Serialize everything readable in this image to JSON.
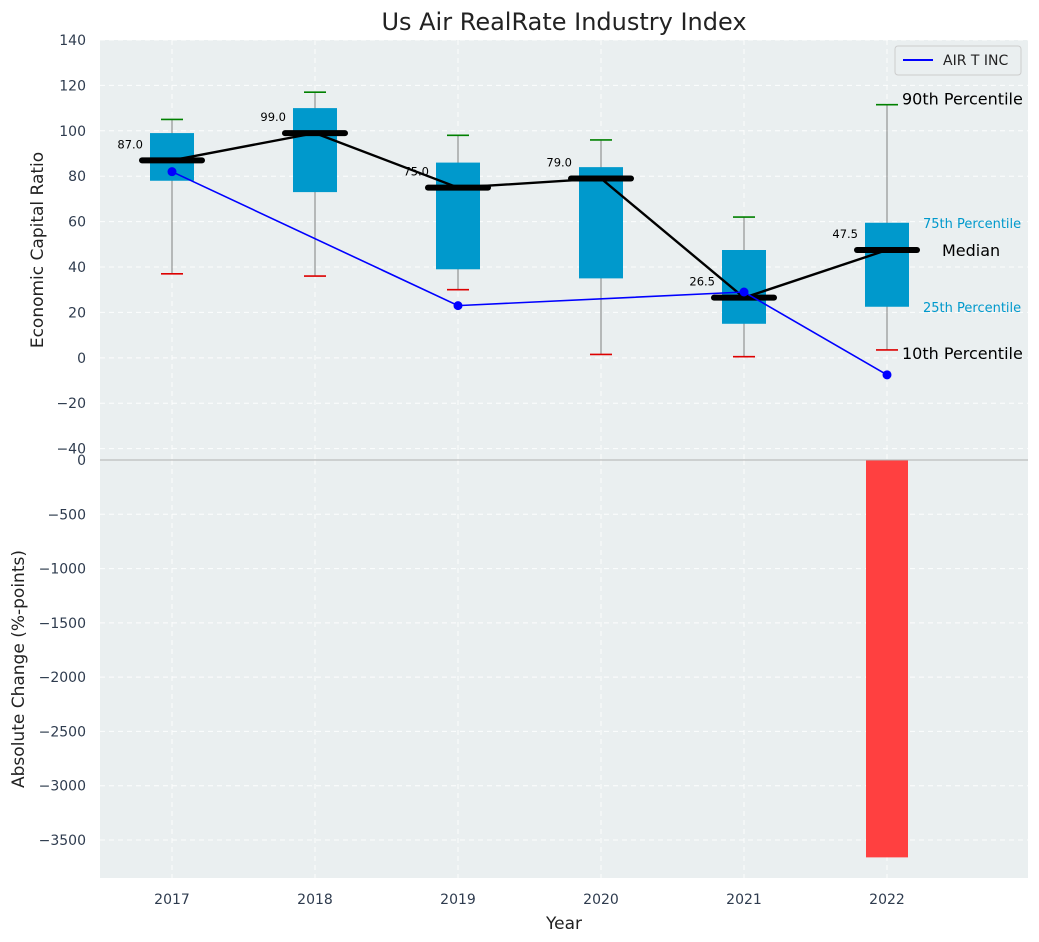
{
  "chart_data": [
    {
      "type": "box",
      "title": "Us Air RealRate Industry Index",
      "ylabel": "Economic Capital Ratio",
      "ylim": [
        -45,
        140
      ],
      "yticks": [
        -40,
        -20,
        0,
        20,
        40,
        60,
        80,
        100,
        120,
        140
      ],
      "categories": [
        "2017",
        "2018",
        "2019",
        "2020",
        "2021",
        "2022"
      ],
      "percentile_10": [
        37,
        36,
        30,
        1.5,
        0.5,
        3.5
      ],
      "percentile_25": [
        78,
        73,
        39,
        35,
        15,
        22.5
      ],
      "median": [
        87.0,
        99.0,
        75.0,
        79.0,
        26.5,
        47.5
      ],
      "median_labels": [
        "87.0",
        "99.0",
        "75.0",
        "79.0",
        "26.5",
        "47.5"
      ],
      "percentile_75": [
        99,
        110,
        86,
        84,
        47.5,
        59.5
      ],
      "percentile_90": [
        105,
        117,
        98,
        96,
        62,
        111.5
      ],
      "series": [
        {
          "name": "AIR T INC",
          "color": "#0000ff",
          "x": [
            "2017",
            "2019",
            "2021",
            "2022"
          ],
          "values": [
            82,
            23,
            29,
            -7.5
          ]
        }
      ],
      "legend": {
        "position": "top-right",
        "entries": [
          "AIR T INC"
        ]
      },
      "annotations": {
        "p90": "90th Percentile",
        "p75": "75th Percentile",
        "median": "Median",
        "p25": "25th Percentile",
        "p10": "10th Percentile"
      },
      "colors": {
        "box": "#0099cc",
        "median_line": "#000000",
        "p90_cap": "#008000",
        "p10_cap": "#dd0000",
        "annotation_small": "#0099cc"
      }
    },
    {
      "type": "bar",
      "ylabel": "Absolute Change (%-points)",
      "xlabel": "Year",
      "ylim": [
        -3850,
        0
      ],
      "yticks": [
        0,
        -500,
        -1000,
        -1500,
        -2000,
        -2500,
        -3000,
        -3500
      ],
      "categories": [
        "2017",
        "2018",
        "2019",
        "2020",
        "2021",
        "2022"
      ],
      "values": [
        null,
        null,
        null,
        null,
        null,
        -3660
      ],
      "colors": {
        "bar": "#ff4040"
      }
    }
  ]
}
